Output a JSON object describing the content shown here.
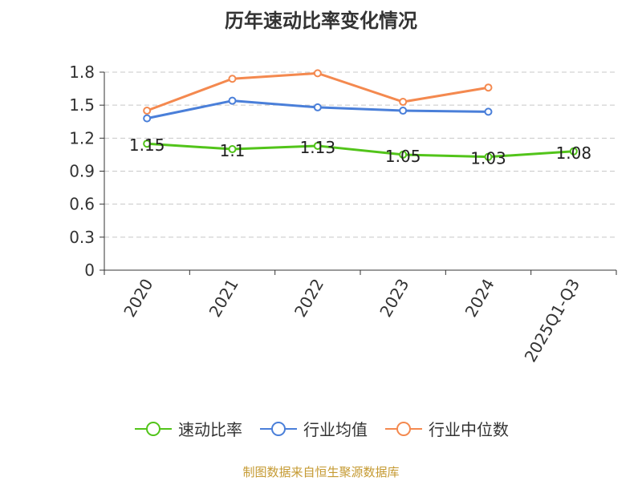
{
  "chart_data": {
    "type": "line",
    "title": "历年速动比率变化情况",
    "categories": [
      "2020",
      "2021",
      "2022",
      "2023",
      "2024",
      "2025Q1-Q3"
    ],
    "ylim": [
      0,
      1.8
    ],
    "yticks": [
      0,
      0.3,
      0.6,
      0.9,
      1.2,
      1.5,
      1.8
    ],
    "ytick_labels": [
      "0",
      "0.3",
      "0.6",
      "0.9",
      "1.2",
      "1.5",
      "1.8"
    ],
    "grid": "horizontal-dashed",
    "legend_position": "bottom",
    "series": [
      {
        "name": "速动比率",
        "color": "#52c41a",
        "values": [
          1.15,
          1.1,
          1.13,
          1.05,
          1.03,
          1.08
        ],
        "labels": [
          "1.15",
          "1.1",
          "1.13",
          "1.05",
          "1.03",
          "1.08"
        ]
      },
      {
        "name": "行业均值",
        "color": "#4a7fd9",
        "values": [
          1.38,
          1.54,
          1.48,
          1.45,
          1.44,
          null
        ]
      },
      {
        "name": "行业中位数",
        "color": "#f4894f",
        "values": [
          1.45,
          1.74,
          1.79,
          1.53,
          1.66,
          null
        ]
      }
    ]
  },
  "footer": {
    "source": "制图数据来自恒生聚源数据库"
  }
}
